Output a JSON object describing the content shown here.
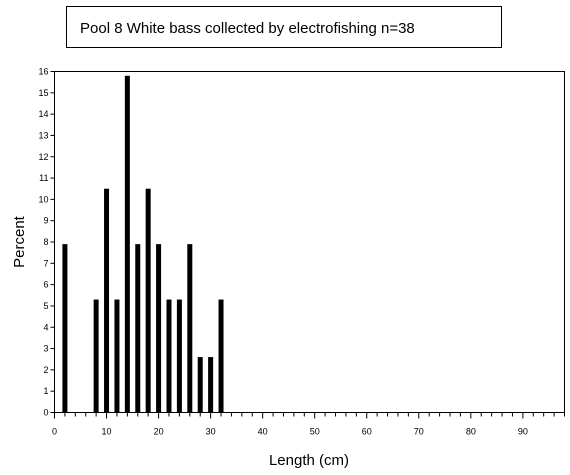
{
  "chart_data": {
    "type": "bar",
    "title": "Pool 8 White bass collected by electrofishing n=38",
    "xlabel": "Length (cm)",
    "ylabel": "Percent",
    "xlim": [
      0,
      98
    ],
    "ylim": [
      0,
      16
    ],
    "xticks": [
      0,
      10,
      20,
      30,
      40,
      50,
      60,
      70,
      80,
      90
    ],
    "yticks": [
      0,
      1,
      2,
      3,
      4,
      5,
      6,
      7,
      8,
      9,
      10,
      11,
      12,
      13,
      14,
      15,
      16
    ],
    "bar_color": "#000000",
    "x": [
      2,
      8,
      10,
      12,
      14,
      16,
      18,
      20,
      22,
      24,
      26,
      28,
      30,
      32
    ],
    "values": [
      7.9,
      5.3,
      10.5,
      5.3,
      15.8,
      7.9,
      10.5,
      7.9,
      5.3,
      5.3,
      7.9,
      2.6,
      2.6,
      5.3
    ]
  }
}
